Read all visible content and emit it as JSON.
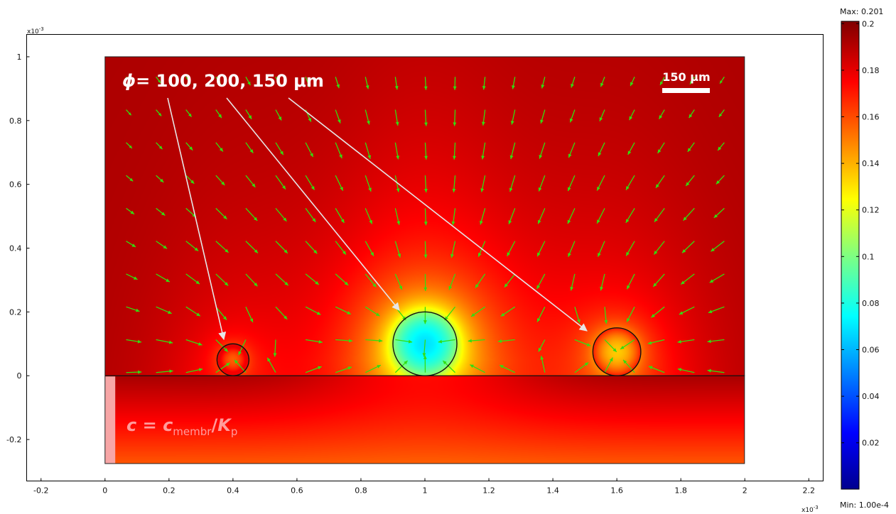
{
  "chart_data": {
    "type": "heatmap",
    "x_ticks": [
      -0.2,
      0,
      0.2,
      0.4,
      0.6,
      0.8,
      1,
      1.2,
      1.4,
      1.6,
      1.8,
      2,
      2.2
    ],
    "y_ticks": [
      -0.2,
      0,
      0.2,
      0.4,
      0.6,
      0.8,
      1
    ],
    "x_exponent": "x10",
    "x_exponent_power": "-3",
    "y_exponent": "x10",
    "y_exponent_power": "-3",
    "xlim": [
      -0.245,
      2.245
    ],
    "ylim": [
      -0.33,
      1.07
    ],
    "domain_x": [
      0,
      2
    ],
    "domain_y": [
      -0.275,
      1.0
    ],
    "interface_y": 0,
    "membrane_strip_x": [
      0,
      0.032
    ],
    "colorbar": {
      "max_label": "Max: 0.201",
      "min_label": "Min: 1.00e-4",
      "ticks": [
        0.2,
        0.18,
        0.16,
        0.14,
        0.12,
        0.1,
        0.08,
        0.06,
        0.04,
        0.02
      ],
      "range": [
        0.0001,
        0.201
      ]
    },
    "spheres": [
      {
        "cx": 0.4,
        "cy": 0.05,
        "r": 0.05,
        "c_min": 0.16
      },
      {
        "cx": 1.0,
        "cy": 0.1,
        "r": 0.1,
        "c_min": 0.07
      },
      {
        "cx": 1.6,
        "cy": 0.075,
        "r": 0.075,
        "c_min": 0.135
      }
    ],
    "annotations": {
      "phi_symbol": "ϕ",
      "diameters_text": "= 100,  200,  150 μm",
      "scale_bar_label": "150 μm",
      "bc_c": "c",
      "bc_eq": " = ",
      "bc_cm": "c",
      "bc_membr": "membr",
      "bc_slash": "/",
      "bc_K": "K",
      "bc_p": "p"
    },
    "colors": {
      "arrows": "#33dd11",
      "annotation_lines": "#e6e6e6",
      "membrane_strip": "#f7a6a6",
      "outlines": "#111111"
    }
  }
}
